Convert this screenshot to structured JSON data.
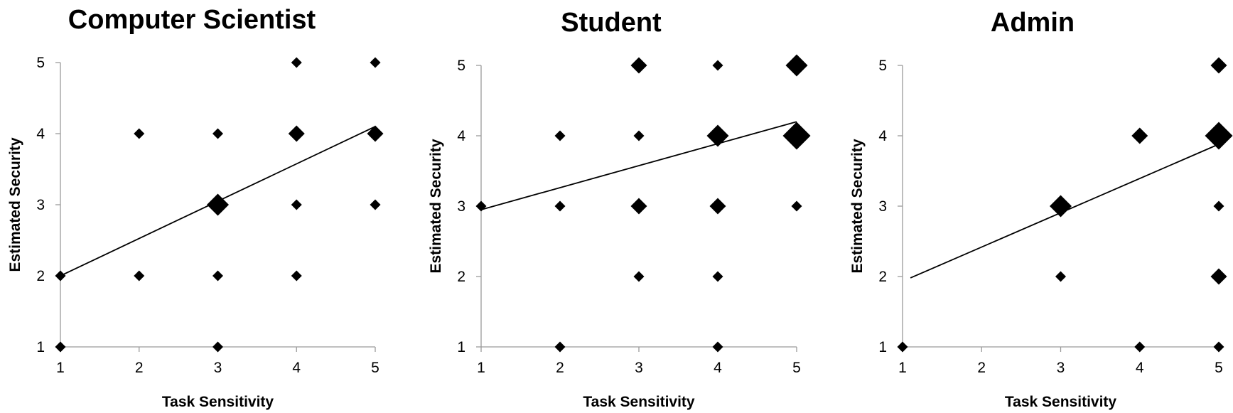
{
  "chart_data": [
    {
      "type": "scatter",
      "title": "Computer Scientist",
      "xlabel": "Task Sensitivity",
      "ylabel": "Estimated Security",
      "xlim": [
        1,
        5
      ],
      "ylim": [
        1,
        5
      ],
      "xticks": [
        1,
        2,
        3,
        4,
        5
      ],
      "yticks": [
        1,
        2,
        3,
        4,
        5
      ],
      "marker": "diamond",
      "marker_size_encodes": "count",
      "points": [
        {
          "x": 1,
          "y": 1,
          "count": 1
        },
        {
          "x": 1,
          "y": 2,
          "count": 1
        },
        {
          "x": 2,
          "y": 2,
          "count": 1
        },
        {
          "x": 2,
          "y": 4,
          "count": 1
        },
        {
          "x": 3,
          "y": 1,
          "count": 1
        },
        {
          "x": 3,
          "y": 2,
          "count": 1
        },
        {
          "x": 3,
          "y": 3,
          "count": 3
        },
        {
          "x": 3,
          "y": 4,
          "count": 1
        },
        {
          "x": 4,
          "y": 2,
          "count": 1
        },
        {
          "x": 4,
          "y": 3,
          "count": 1
        },
        {
          "x": 4,
          "y": 4,
          "count": 2
        },
        {
          "x": 4,
          "y": 5,
          "count": 1
        },
        {
          "x": 5,
          "y": 3,
          "count": 1
        },
        {
          "x": 5,
          "y": 4,
          "count": 2
        },
        {
          "x": 5,
          "y": 5,
          "count": 1
        }
      ],
      "trendline": {
        "x": [
          1,
          5
        ],
        "y": [
          2.0,
          4.1
        ]
      }
    },
    {
      "type": "scatter",
      "title": "Student",
      "xlabel": "Task Sensitivity",
      "ylabel": "Estimated Security",
      "xlim": [
        1,
        5
      ],
      "ylim": [
        1,
        5
      ],
      "xticks": [
        1,
        2,
        3,
        4,
        5
      ],
      "yticks": [
        1,
        2,
        3,
        4,
        5
      ],
      "marker": "diamond",
      "marker_size_encodes": "count",
      "points": [
        {
          "x": 1,
          "y": 3,
          "count": 1
        },
        {
          "x": 2,
          "y": 1,
          "count": 1
        },
        {
          "x": 2,
          "y": 3,
          "count": 1
        },
        {
          "x": 2,
          "y": 4,
          "count": 1
        },
        {
          "x": 3,
          "y": 2,
          "count": 1
        },
        {
          "x": 3,
          "y": 3,
          "count": 2
        },
        {
          "x": 3,
          "y": 4,
          "count": 1
        },
        {
          "x": 3,
          "y": 5,
          "count": 2
        },
        {
          "x": 4,
          "y": 1,
          "count": 1
        },
        {
          "x": 4,
          "y": 2,
          "count": 1
        },
        {
          "x": 4,
          "y": 3,
          "count": 2
        },
        {
          "x": 4,
          "y": 4,
          "count": 3
        },
        {
          "x": 4,
          "y": 5,
          "count": 1
        },
        {
          "x": 5,
          "y": 3,
          "count": 1
        },
        {
          "x": 5,
          "y": 4,
          "count": 4
        },
        {
          "x": 5,
          "y": 5,
          "count": 3
        }
      ],
      "trendline": {
        "x": [
          1,
          5
        ],
        "y": [
          2.95,
          4.2
        ]
      }
    },
    {
      "type": "scatter",
      "title": "Admin",
      "xlabel": "Task Sensitivity",
      "ylabel": "Estimated Security",
      "xlim": [
        1,
        5
      ],
      "ylim": [
        1,
        5
      ],
      "xticks": [
        1,
        2,
        3,
        4,
        5
      ],
      "yticks": [
        1,
        2,
        3,
        4,
        5
      ],
      "marker": "diamond",
      "marker_size_encodes": "count",
      "points": [
        {
          "x": 1,
          "y": 1,
          "count": 1
        },
        {
          "x": 3,
          "y": 2,
          "count": 1
        },
        {
          "x": 3,
          "y": 3,
          "count": 3
        },
        {
          "x": 4,
          "y": 1,
          "count": 1
        },
        {
          "x": 4,
          "y": 4,
          "count": 2
        },
        {
          "x": 5,
          "y": 1,
          "count": 1
        },
        {
          "x": 5,
          "y": 2,
          "count": 2
        },
        {
          "x": 5,
          "y": 3,
          "count": 1
        },
        {
          "x": 5,
          "y": 4,
          "count": 4
        },
        {
          "x": 5,
          "y": 5,
          "count": 2
        }
      ],
      "trendline": {
        "x": [
          1.1,
          5
        ],
        "y": [
          1.98,
          3.88
        ]
      }
    }
  ]
}
